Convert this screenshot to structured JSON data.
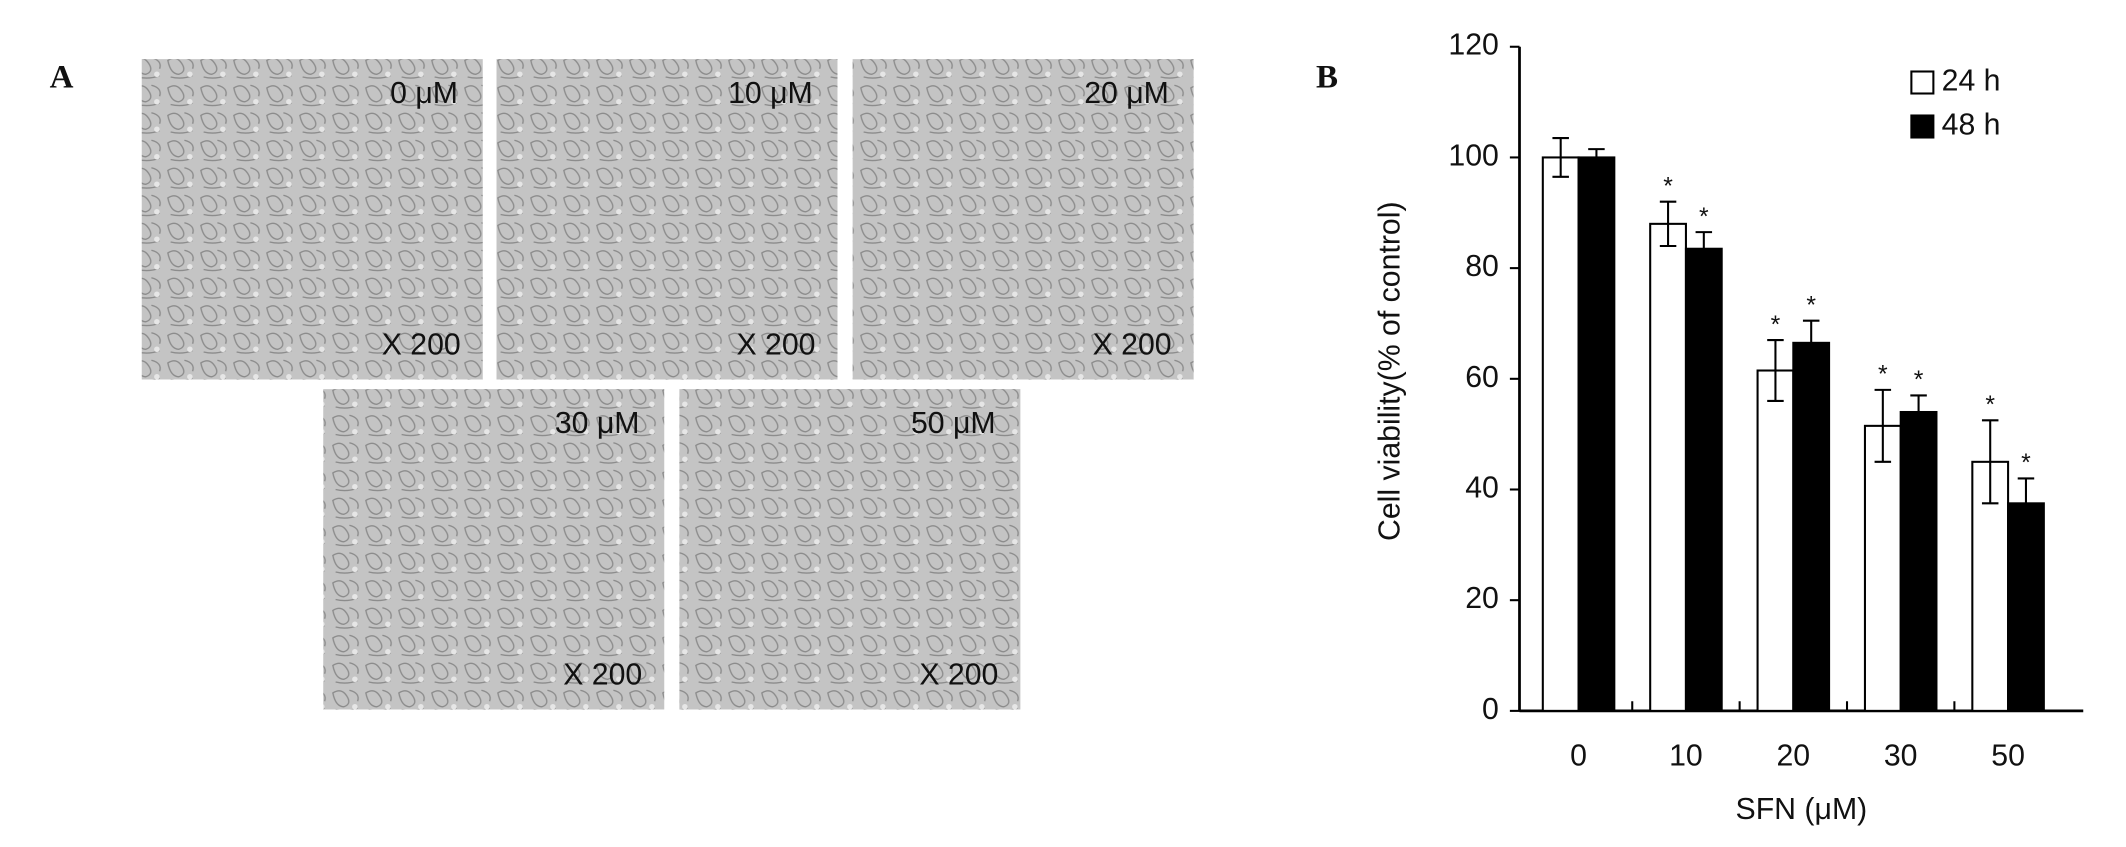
{
  "panel_a": {
    "label": "A",
    "images": [
      {
        "concentration": "0 μM",
        "magnification": "X 200"
      },
      {
        "concentration": "10 μM",
        "magnification": "X 200"
      },
      {
        "concentration": "20 μM",
        "magnification": "X 200"
      },
      {
        "concentration": "30 μM",
        "magnification": "X 200"
      },
      {
        "concentration": "50 μM",
        "magnification": "X 200"
      }
    ]
  },
  "chart_data": {
    "type": "bar",
    "panel_label": "B",
    "x_label": "SFN  (μM)",
    "y_label": "Cell viability(% of  control)",
    "categories": [
      "0",
      "10",
      "20",
      "30",
      "50"
    ],
    "series": [
      {
        "name": "24 h",
        "color": "#ffffff",
        "values": [
          100,
          88,
          61.5,
          51.5,
          45
        ],
        "errors": [
          3.5,
          4,
          5.5,
          6.5,
          7.5
        ],
        "significance_labels": [
          null,
          "*",
          "*",
          "*",
          "*"
        ]
      },
      {
        "name": "48 h",
        "color": "#000000",
        "values": [
          100,
          83.5,
          66.5,
          54,
          37.5
        ],
        "errors": [
          1.5,
          3,
          4,
          3,
          4.5
        ],
        "significance_labels": [
          null,
          "*",
          "*",
          "*",
          "*"
        ]
      }
    ],
    "ylim": [
      0,
      120
    ],
    "yticks": [
      0,
      20,
      40,
      60,
      80,
      100,
      120
    ],
    "legend": "top-right",
    "grid": false
  }
}
